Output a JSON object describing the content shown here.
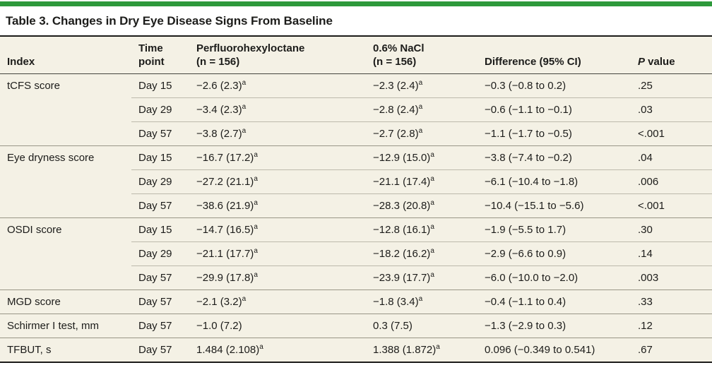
{
  "title": "Table 3. Changes in Dry Eye Disease Signs From Baseline",
  "colors": {
    "accent_green": "#2d993b",
    "table_background": "#f4f1e5",
    "rule_dark": "#1b1b19",
    "rule_group": "#999687",
    "rule_sub": "#bdbaac"
  },
  "table": {
    "columns": [
      {
        "id": "index",
        "lines": [
          "Index"
        ]
      },
      {
        "id": "time-point",
        "lines": [
          "Time",
          "point"
        ]
      },
      {
        "id": "perfluorohexyloctane",
        "lines": [
          "Perfluorohexyloctane",
          "(n = 156)"
        ]
      },
      {
        "id": "nacl",
        "lines": [
          "0.6% NaCl",
          "(n = 156)"
        ]
      },
      {
        "id": "difference",
        "lines": [
          "Difference (95% CI)"
        ]
      },
      {
        "id": "p-value",
        "lines": [
          "P value"
        ],
        "italic_first_char": true
      }
    ],
    "rows": [
      {
        "sep": "none",
        "index": "tCFS score",
        "time": "Day 15",
        "drug": {
          "v": "−2.6 (2.3)",
          "sup": "a"
        },
        "control": {
          "v": "−2.3 (2.4)",
          "sup": "a"
        },
        "diff": "−0.3 (−0.8 to 0.2)",
        "p": ".25"
      },
      {
        "sep": "part",
        "index": "",
        "time": "Day 29",
        "drug": {
          "v": "−3.4 (2.3)",
          "sup": "a"
        },
        "control": {
          "v": "−2.8 (2.4)",
          "sup": "a"
        },
        "diff": "−0.6 (−1.1 to −0.1)",
        "p": ".03"
      },
      {
        "sep": "part",
        "index": "",
        "time": "Day 57",
        "drug": {
          "v": "−3.8 (2.7)",
          "sup": "a"
        },
        "control": {
          "v": "−2.7 (2.8)",
          "sup": "a"
        },
        "diff": "−1.1 (−1.7 to −0.5)",
        "p": "<.001"
      },
      {
        "sep": "full",
        "index": "Eye dryness score",
        "time": "Day 15",
        "drug": {
          "v": "−16.7 (17.2)",
          "sup": "a"
        },
        "control": {
          "v": "−12.9 (15.0)",
          "sup": "a"
        },
        "diff": "−3.8 (−7.4 to −0.2)",
        "p": ".04"
      },
      {
        "sep": "part",
        "index": "",
        "time": "Day 29",
        "drug": {
          "v": "−27.2 (21.1)",
          "sup": "a"
        },
        "control": {
          "v": "−21.1 (17.4)",
          "sup": "a"
        },
        "diff": "−6.1 (−10.4 to −1.8)",
        "p": ".006"
      },
      {
        "sep": "part",
        "index": "",
        "time": "Day 57",
        "drug": {
          "v": "−38.6 (21.9)",
          "sup": "a"
        },
        "control": {
          "v": "−28.3 (20.8)",
          "sup": "a"
        },
        "diff": "−10.4 (−15.1 to −5.6)",
        "p": "<.001"
      },
      {
        "sep": "full",
        "index": "OSDI score",
        "time": "Day 15",
        "drug": {
          "v": "−14.7 (16.5)",
          "sup": "a"
        },
        "control": {
          "v": "−12.8 (16.1)",
          "sup": "a"
        },
        "diff": "−1.9 (−5.5 to 1.7)",
        "p": ".30"
      },
      {
        "sep": "part",
        "index": "",
        "time": "Day 29",
        "drug": {
          "v": "−21.1 (17.7)",
          "sup": "a"
        },
        "control": {
          "v": "−18.2 (16.2)",
          "sup": "a"
        },
        "diff": "−2.9 (−6.6 to 0.9)",
        "p": ".14"
      },
      {
        "sep": "part",
        "index": "",
        "time": "Day 57",
        "drug": {
          "v": "−29.9 (17.8)",
          "sup": "a"
        },
        "control": {
          "v": "−23.9 (17.7)",
          "sup": "a"
        },
        "diff": "−6.0 (−10.0 to −2.0)",
        "p": ".003"
      },
      {
        "sep": "full",
        "index": "MGD score",
        "time": "Day 57",
        "drug": {
          "v": "−2.1 (3.2)",
          "sup": "a"
        },
        "control": {
          "v": "−1.8 (3.4)",
          "sup": "a"
        },
        "diff": "−0.4 (−1.1 to 0.4)",
        "p": ".33"
      },
      {
        "sep": "full",
        "index": "Schirmer I test, mm",
        "time": "Day 57",
        "drug": {
          "v": "−1.0 (7.2)",
          "sup": ""
        },
        "control": {
          "v": "0.3 (7.5)",
          "sup": ""
        },
        "diff": "−1.3 (−2.9 to 0.3)",
        "p": ".12"
      },
      {
        "sep": "full",
        "index": "TFBUT, s",
        "time": "Day 57",
        "drug": {
          "v": "1.484 (2.108)",
          "sup": "a"
        },
        "control": {
          "v": "1.388 (1.872)",
          "sup": "a"
        },
        "diff": "0.096 (−0.349 to 0.541)",
        "p": ".67"
      }
    ]
  }
}
